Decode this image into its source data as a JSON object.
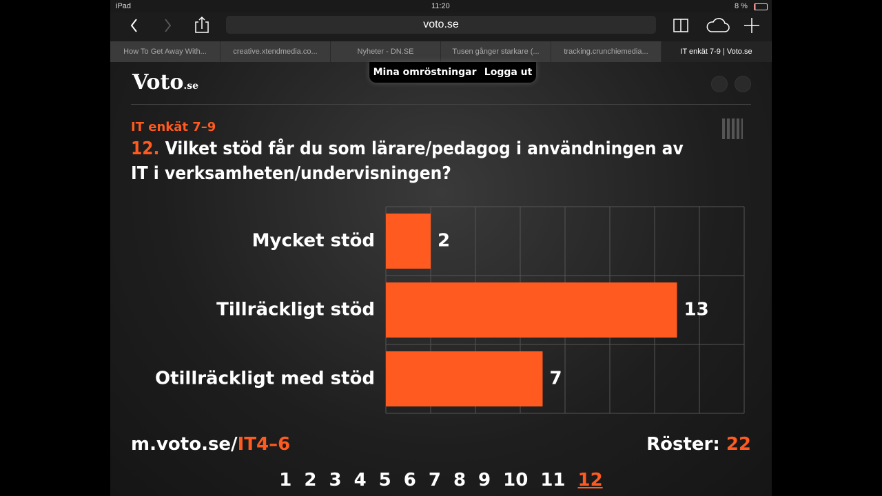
{
  "status_bar": {
    "device": "iPad",
    "time": "11:20",
    "battery": "8 %"
  },
  "browser": {
    "url": "voto.se",
    "tabs": [
      "How To Get Away With...",
      "creative.xtendmedia.co...",
      "Nyheter - DN.SE",
      "Tusen gånger starkare (...",
      "tracking.crunchiemedia...",
      "IT enkät 7-9 | Voto.se"
    ],
    "active_tab": 5
  },
  "site": {
    "logo": "Voto",
    "logo_suffix": ".se",
    "nav": [
      "Mina omröstningar",
      "Logga ut"
    ]
  },
  "chart_data": {
    "type": "bar",
    "orientation": "horizontal",
    "subtitle": "IT enkät 7–9",
    "question_number": "12.",
    "title": "Vilket stöd får du som lärare/pedagog i användningen av IT i verksamheten/undervisningen?",
    "categories": [
      "Mycket stöd",
      "Tillräckligt stöd",
      "Otillräckligt med stöd"
    ],
    "values": [
      2,
      13,
      7
    ],
    "color": "#ff5a1f",
    "xlim": [
      0,
      16
    ],
    "xgrid": [
      0,
      2,
      4,
      6,
      8,
      10,
      12,
      14,
      16
    ],
    "grid": true
  },
  "footer": {
    "url_prefix": "m.voto.se/",
    "code": "IT4–6",
    "votes_label": "Röster:",
    "votes": 22
  },
  "pagination": {
    "pages": [
      1,
      2,
      3,
      4,
      5,
      6,
      7,
      8,
      9,
      10,
      11,
      12
    ],
    "current": 11
  }
}
